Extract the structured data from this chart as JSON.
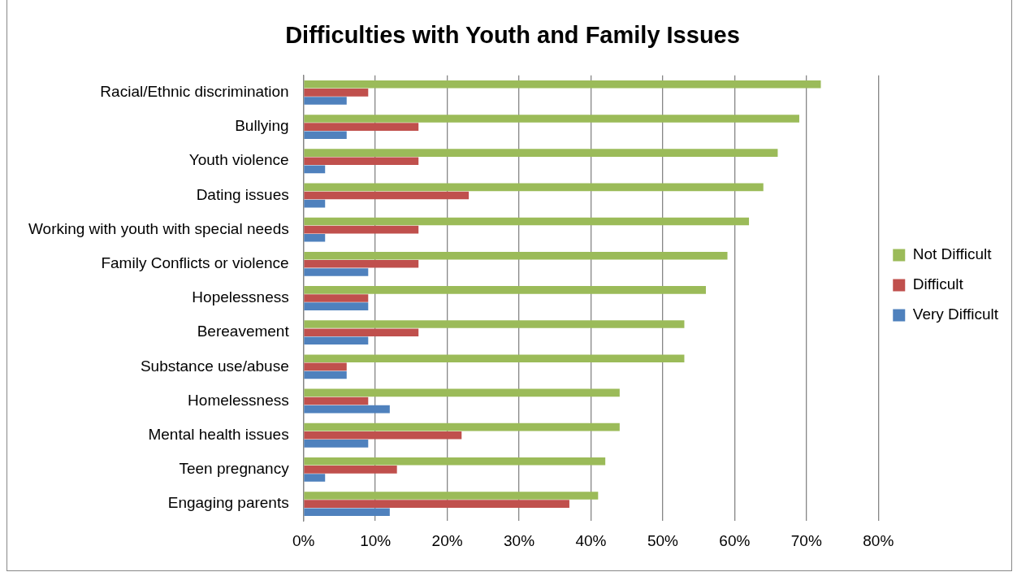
{
  "chart_data": {
    "type": "bar",
    "orientation": "horizontal",
    "title": "Difficulties with Youth and Family Issues",
    "categories": [
      "Racial/Ethnic discrimination",
      "Bullying",
      "Youth violence",
      "Dating issues",
      "Working with youth with special needs",
      "Family Conflicts or violence",
      "Hopelessness",
      "Bereavement",
      "Substance use/abuse",
      "Homelessness",
      "Mental health issues",
      "Teen pregnancy",
      "Engaging parents"
    ],
    "series": [
      {
        "name": "Not Difficult",
        "color": "#9bbb59",
        "values": [
          72,
          69,
          66,
          64,
          62,
          59,
          56,
          53,
          53,
          44,
          44,
          42,
          41
        ]
      },
      {
        "name": "Difficult",
        "color": "#c0504d",
        "values": [
          9,
          16,
          16,
          23,
          16,
          16,
          9,
          16,
          6,
          9,
          22,
          13,
          37
        ]
      },
      {
        "name": "Very Difficult",
        "color": "#4f81bd",
        "values": [
          6,
          6,
          3,
          3,
          3,
          9,
          9,
          9,
          6,
          12,
          9,
          3,
          12
        ]
      }
    ],
    "xlim": [
      0,
      80
    ],
    "xticks": [
      {
        "value": 0,
        "label": "0%"
      },
      {
        "value": 10,
        "label": "10%"
      },
      {
        "value": 20,
        "label": "20%"
      },
      {
        "value": 30,
        "label": "30%"
      },
      {
        "value": 40,
        "label": "40%"
      },
      {
        "value": 50,
        "label": "50%"
      },
      {
        "value": 60,
        "label": "60%"
      },
      {
        "value": 70,
        "label": "70%"
      },
      {
        "value": 80,
        "label": "80%"
      }
    ],
    "grid": "x",
    "legend": "right"
  }
}
